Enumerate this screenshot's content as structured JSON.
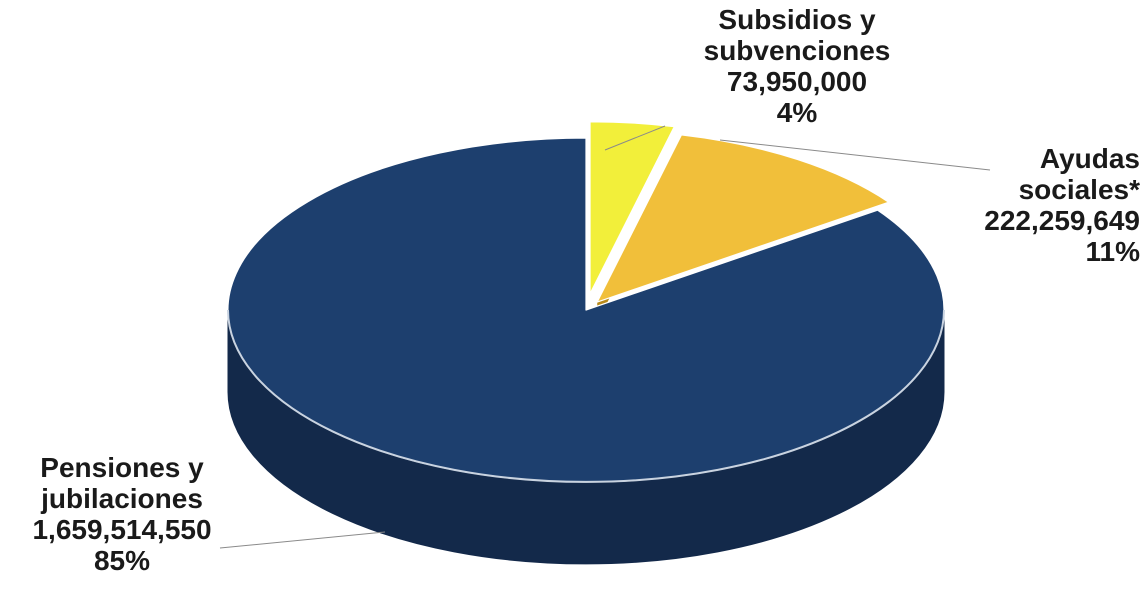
{
  "chart_data": {
    "type": "pie",
    "slices": [
      {
        "label_lines": [
          "Subsidios y",
          "subvenciones"
        ],
        "value": 73950000,
        "value_text": "73,950,000",
        "percent": 4,
        "percent_text": "4%",
        "color": "#f2ef3a",
        "side_color": "#b7b21e"
      },
      {
        "label_lines": [
          "Ayudas",
          "sociales*"
        ],
        "value": 222259649,
        "value_text": "222,259,649",
        "percent": 11,
        "percent_text": "11%",
        "color": "#f1bf3a",
        "side_color": "#b88a1b"
      },
      {
        "label_lines": [
          "Pensiones y",
          "jubilaciones"
        ],
        "value": 1659514550,
        "value_text": "1,659,514,550",
        "percent": 85,
        "percent_text": "85%",
        "color": "#1d3f6e",
        "side_color": "#13294a"
      }
    ]
  }
}
